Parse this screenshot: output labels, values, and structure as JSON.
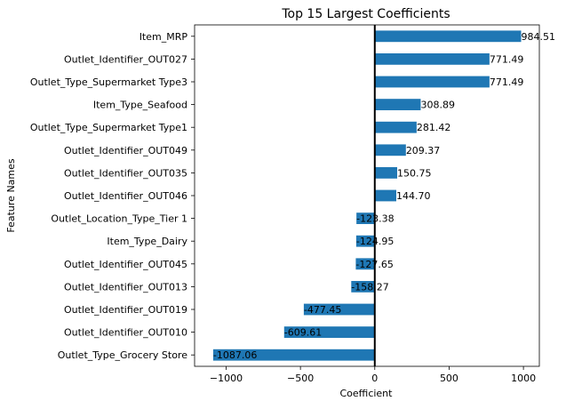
{
  "chart_data": {
    "type": "bar",
    "orientation": "horizontal",
    "title": "Top 15 Largest Coefficients",
    "xlabel": "Coefficient",
    "ylabel": "Feature Names",
    "xlim": [
      -1212,
      1107
    ],
    "xticks": [
      -1000,
      -500,
      0,
      500,
      1000
    ],
    "xtick_labels": [
      "−1000",
      "−500",
      "0",
      "500",
      "1000"
    ],
    "grid": false,
    "zero_line": true,
    "bar_color": "#1f77b4",
    "categories": [
      "Item_MRP",
      "Outlet_Identifier_OUT027",
      "Outlet_Type_Supermarket Type3",
      "Item_Type_Seafood",
      "Outlet_Type_Supermarket Type1",
      "Outlet_Identifier_OUT049",
      "Outlet_Identifier_OUT035",
      "Outlet_Identifier_OUT046",
      "Outlet_Location_Type_Tier 1",
      "Item_Type_Dairy",
      "Outlet_Identifier_OUT045",
      "Outlet_Identifier_OUT013",
      "Outlet_Identifier_OUT019",
      "Outlet_Identifier_OUT010",
      "Outlet_Type_Grocery Store"
    ],
    "values": [
      984.51,
      771.49,
      771.49,
      308.89,
      281.42,
      209.37,
      150.75,
      144.7,
      -123.38,
      -124.95,
      -127.65,
      -158.27,
      -477.45,
      -609.61,
      -1087.06
    ],
    "value_labels": [
      "984.51",
      "771.49",
      "771.49",
      "308.89",
      "281.42",
      "209.37",
      "150.75",
      "144.70",
      "-123.38",
      "-124.95",
      "-127.65",
      "-158.27",
      "-477.45",
      "-609.61",
      "-1087.06"
    ]
  }
}
